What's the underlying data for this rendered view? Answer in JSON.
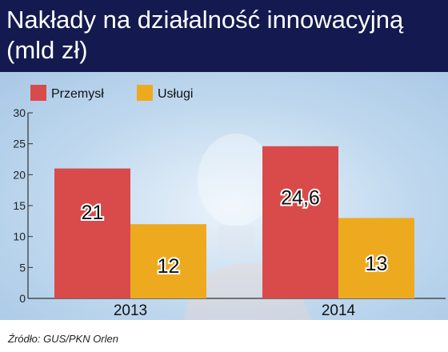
{
  "header": {
    "title": "Nakłady na działalność innowacyjną (mld zł)"
  },
  "source": "Źródło: GUS/PKN Orlen",
  "chart_data": {
    "type": "bar",
    "categories": [
      "2013",
      "2014"
    ],
    "series": [
      {
        "name": "Przemysł",
        "values": [
          21,
          24.6
        ],
        "labels": [
          "21",
          "24,6"
        ],
        "color": "#d94a4a"
      },
      {
        "name": "Usługi",
        "values": [
          12,
          13
        ],
        "labels": [
          "12",
          "13"
        ],
        "color": "#eeaa1f"
      }
    ],
    "ylim": [
      0,
      30
    ],
    "yticks": [
      0,
      5,
      10,
      15,
      20,
      25,
      30
    ],
    "grid": false,
    "legend_position": "top-left"
  }
}
